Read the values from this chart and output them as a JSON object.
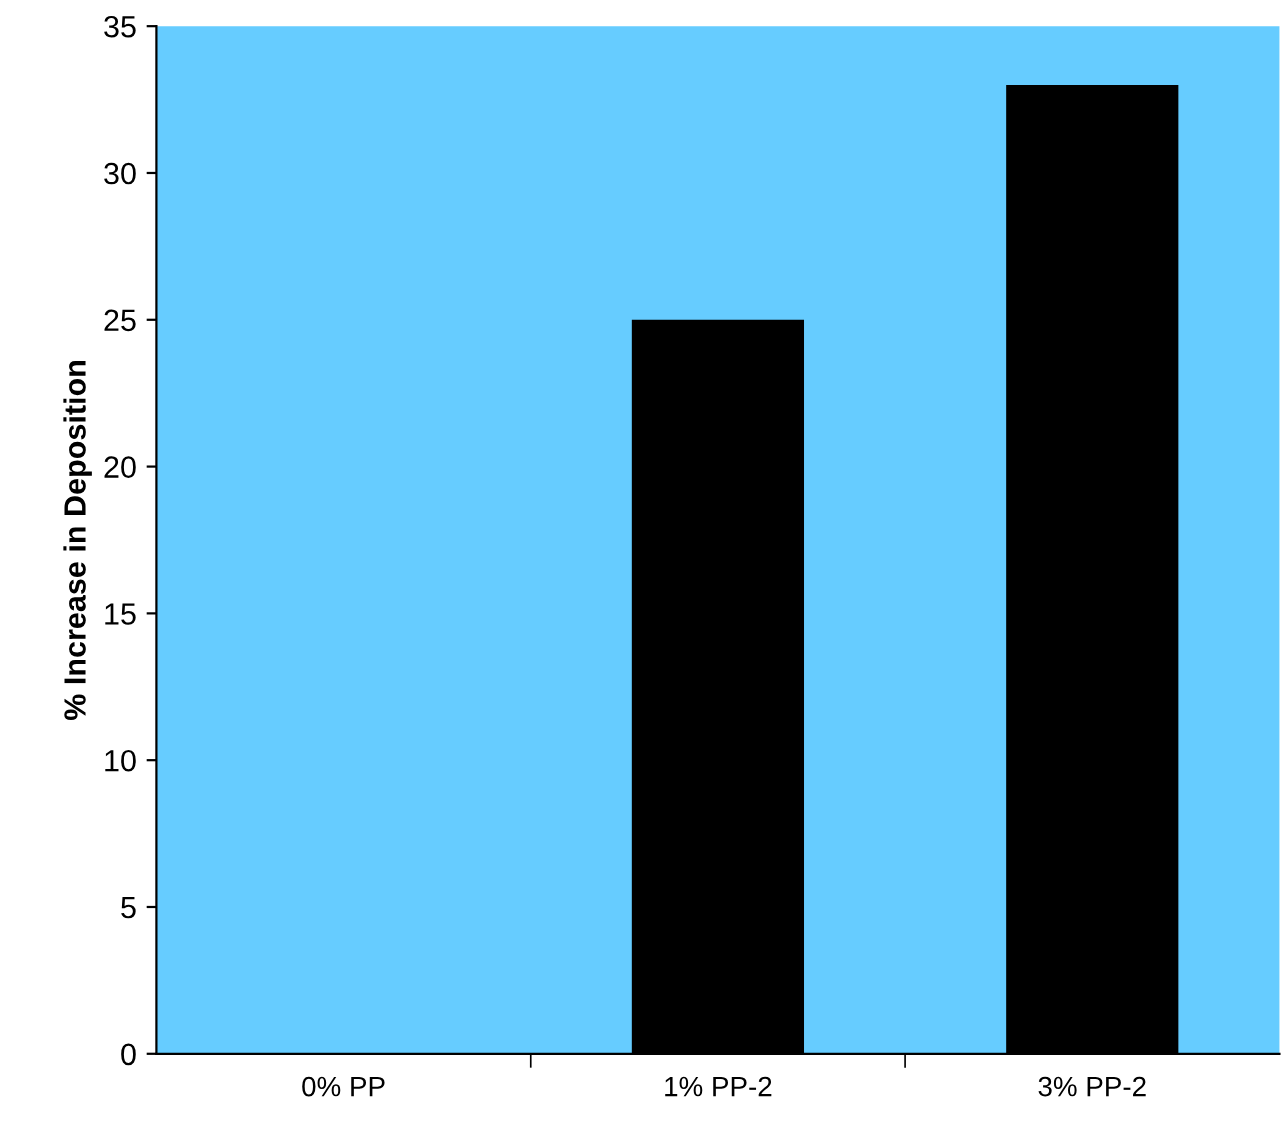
{
  "chart_data": {
    "type": "bar",
    "ylabel": "% Increase in Deposition",
    "categories": [
      "0% PP",
      "1% PP-2",
      "3% PP-2"
    ],
    "values": [
      0,
      25,
      33
    ],
    "color": "#000000",
    "ylim": [
      0,
      35
    ],
    "yticks": [
      0,
      5,
      10,
      15,
      20,
      25,
      30,
      35
    ],
    "grid": false
  }
}
